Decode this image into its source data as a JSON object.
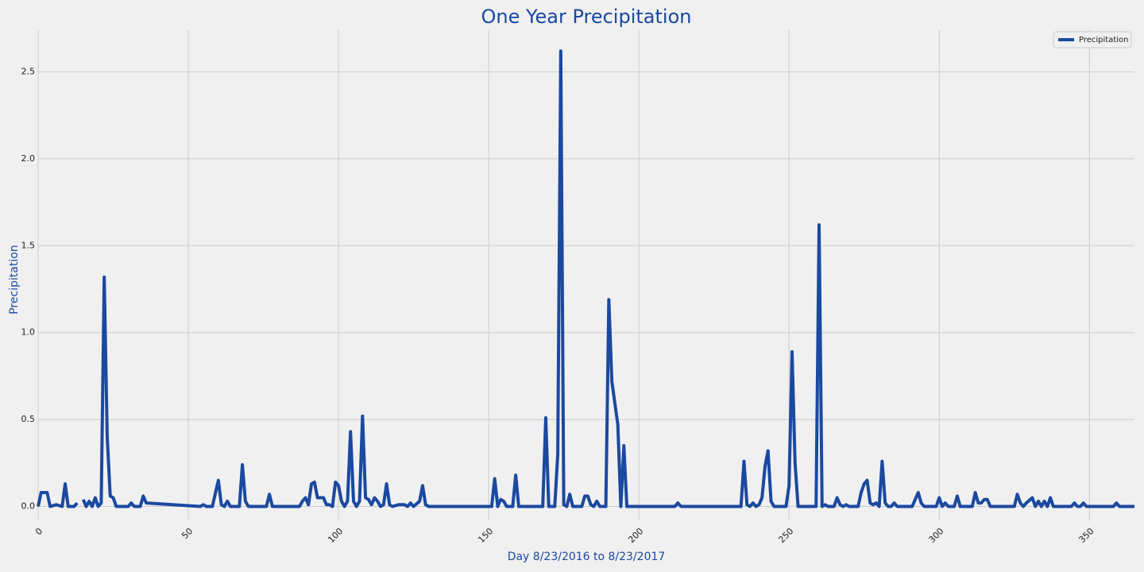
{
  "chart_data": {
    "type": "line",
    "title": "One Year Precipitation",
    "xlabel": "Day 8/23/2016 to 8/23/2017",
    "ylabel": "Precipitation",
    "legend": "upper right",
    "grid": true,
    "xlim": [
      0,
      365
    ],
    "xticks": [
      0,
      50,
      100,
      150,
      200,
      250,
      300,
      350
    ],
    "ylim": [
      -0.08,
      2.74
    ],
    "yticks": [
      {
        "value": 0,
        "label": "0.0"
      },
      0.5,
      {
        "value": 1,
        "label": "1.0"
      },
      1.5,
      {
        "value": 2,
        "label": "2.0"
      },
      2.5
    ],
    "x": [
      0,
      1,
      3,
      4,
      6,
      8,
      9,
      10,
      12,
      13,
      14,
      15,
      16,
      17,
      18,
      19,
      20,
      21,
      22,
      23,
      24,
      25,
      26,
      30,
      31,
      32,
      34,
      35,
      36,
      54,
      55,
      56,
      58,
      60,
      61,
      62,
      63,
      64,
      67,
      68,
      69,
      70,
      76,
      77,
      78,
      87,
      88,
      89,
      90,
      91,
      92,
      93,
      95,
      96,
      97,
      98,
      99,
      100,
      101,
      102,
      103,
      104,
      105,
      106,
      107,
      108,
      109,
      110,
      111,
      112,
      113,
      114,
      115,
      116,
      117,
      118,
      120,
      122,
      123,
      124,
      125,
      127,
      128,
      129,
      130,
      151,
      152,
      153,
      154,
      155,
      156,
      158,
      159,
      160,
      168,
      169,
      170,
      172,
      173,
      174,
      175,
      176,
      177,
      178,
      181,
      182,
      183,
      184,
      185,
      186,
      187,
      189,
      190,
      191,
      193,
      194,
      195,
      196,
      212,
      213,
      214,
      234,
      235,
      236,
      237,
      238,
      239,
      240,
      241,
      242,
      243,
      244,
      245,
      249,
      250,
      251,
      252,
      253,
      259,
      260,
      261,
      262,
      263,
      265,
      266,
      267,
      268,
      269,
      270,
      273,
      274,
      275,
      276,
      277,
      278,
      279,
      280,
      281,
      282,
      283,
      284,
      285,
      286,
      291,
      293,
      294,
      295,
      299,
      300,
      301,
      302,
      303,
      305,
      306,
      307,
      311,
      312,
      313,
      314,
      315,
      316,
      317,
      325,
      326,
      327,
      328,
      329,
      331,
      332,
      333,
      334,
      335,
      336,
      337,
      338,
      344,
      345,
      346,
      347,
      348,
      349,
      358,
      359,
      360,
      365
    ],
    "series": [
      {
        "name": "Precipitation",
        "color": "#1a49a0",
        "values": [
          0,
          0.08,
          0.08,
          0,
          0.01,
          0,
          0.13,
          0,
          0,
          0.02,
          null,
          0.04,
          0,
          0.03,
          0,
          0.05,
          0,
          0.02,
          1.32,
          0.4,
          0.06,
          0.05,
          0,
          0,
          0.02,
          0,
          0,
          0.06,
          0.02,
          0,
          0.01,
          0,
          0,
          0.15,
          0.01,
          0,
          0.03,
          0,
          0,
          0.24,
          0.03,
          0,
          0,
          0.07,
          0,
          0,
          0.03,
          0.05,
          0.01,
          0.13,
          0.14,
          0.05,
          0.05,
          0.01,
          0.01,
          0,
          0.14,
          0.12,
          0.03,
          0,
          0.03,
          0.43,
          0.03,
          0,
          0.03,
          0.52,
          0.05,
          0.04,
          0.01,
          0.05,
          0.03,
          0,
          0.01,
          0.13,
          0.01,
          0,
          0.01,
          0.01,
          0,
          0.02,
          0,
          0.03,
          0.12,
          0.01,
          0,
          0,
          0.16,
          0,
          0.04,
          0.03,
          0,
          0,
          0.18,
          0,
          0,
          0.51,
          0,
          0,
          0.3,
          2.62,
          0.01,
          0,
          0.07,
          0,
          0,
          0.06,
          0.06,
          0.01,
          0,
          0.03,
          0,
          0,
          1.19,
          0.72,
          0.47,
          0,
          0.35,
          0,
          0,
          0.02,
          0,
          0,
          0.26,
          0.01,
          0,
          0.02,
          0,
          0.01,
          0.05,
          0.23,
          0.32,
          0.03,
          0,
          0,
          0.12,
          0.89,
          0.25,
          0,
          0,
          1.62,
          0,
          0.01,
          0,
          0,
          0.05,
          0.01,
          0,
          0.01,
          0,
          0,
          0.08,
          0.13,
          0.15,
          0.02,
          0.01,
          0.02,
          0,
          0.26,
          0.02,
          0,
          0,
          0.02,
          0,
          0,
          0.08,
          0.02,
          0,
          0,
          0.05,
          0,
          0.02,
          0,
          0,
          0.06,
          0,
          0,
          0.08,
          0.02,
          0.02,
          0.04,
          0.04,
          0,
          0,
          0.07,
          0.02,
          0,
          0.02,
          0.05,
          0,
          0.03,
          0,
          0.03,
          0,
          0.05,
          0,
          0,
          0.02,
          0,
          0,
          0.02,
          0,
          0,
          0.02,
          0,
          0
        ]
      }
    ]
  }
}
